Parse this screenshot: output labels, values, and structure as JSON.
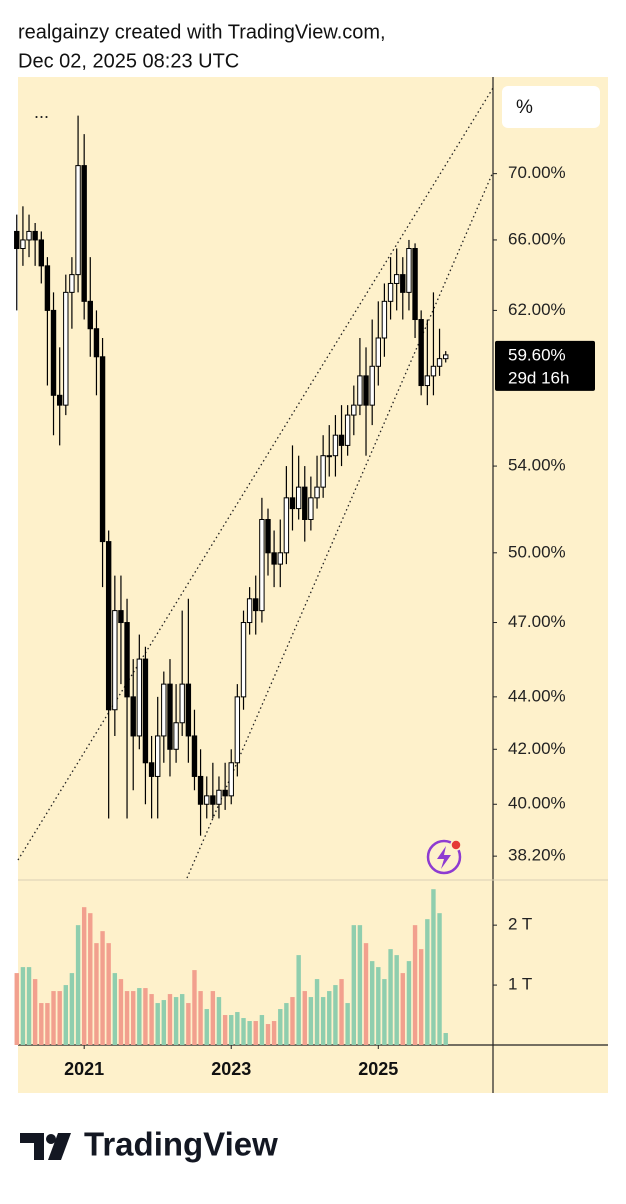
{
  "header": {
    "line1": "realgainzy created with TradingView.com,",
    "line2": "Dec 02, 2025 08:23 UTC"
  },
  "toolbar": {
    "menu": "...",
    "scale_button": "%"
  },
  "logo": "TradingView",
  "chart_data": {
    "type": "candlestick",
    "yscale": "log",
    "up_color": "#ffffff",
    "down_color": "#000000",
    "wick_color": "#000000",
    "volume_up_color": "#8fceae",
    "volume_down_color": "#f2a08e",
    "x": [
      2020.083,
      2020.167,
      2020.25,
      2020.333,
      2020.417,
      2020.5,
      2020.583,
      2020.667,
      2020.75,
      2020.833,
      2020.917,
      2021.0,
      2021.083,
      2021.167,
      2021.25,
      2021.333,
      2021.417,
      2021.5,
      2021.583,
      2021.667,
      2021.75,
      2021.833,
      2021.917,
      2022.0,
      2022.083,
      2022.167,
      2022.25,
      2022.333,
      2022.417,
      2022.5,
      2022.583,
      2022.667,
      2022.75,
      2022.833,
      2022.917,
      2023.0,
      2023.083,
      2023.167,
      2023.25,
      2023.333,
      2023.417,
      2023.5,
      2023.583,
      2023.667,
      2023.75,
      2023.833,
      2023.917,
      2024.0,
      2024.083,
      2024.167,
      2024.25,
      2024.333,
      2024.417,
      2024.5,
      2024.583,
      2024.667,
      2024.75,
      2024.833,
      2024.917,
      2025.0,
      2025.083,
      2025.167,
      2025.25,
      2025.333,
      2025.417,
      2025.5,
      2025.583,
      2025.667,
      2025.75,
      2025.833,
      2025.917
    ],
    "open": [
      66.5,
      65.5,
      66.0,
      66.5,
      66.0,
      64.5,
      62.0,
      57.5,
      57.0,
      63.0,
      64.0,
      70.5,
      62.5,
      61.0,
      59.5,
      50.5,
      43.5,
      47.5,
      47.0,
      44.0,
      42.5,
      45.5,
      41.5,
      41.0,
      42.5,
      44.5,
      42.0,
      43.0,
      44.5,
      42.5,
      41.0,
      40.0,
      40.3,
      40.0,
      40.5,
      40.3,
      41.5,
      44.0,
      47.0,
      48.0,
      47.5,
      51.5,
      50.0,
      49.5,
      50.0,
      52.5,
      52.0,
      53.0,
      51.5,
      52.5,
      53.0,
      54.5,
      54.5,
      55.5,
      55.0,
      56.5,
      57.0,
      58.5,
      57.0,
      59.0,
      60.5,
      62.5,
      63.5,
      64.0,
      63.0,
      65.5,
      61.5,
      58.0,
      58.5,
      59.0,
      59.4
    ],
    "high": [
      67.5,
      68.0,
      67.5,
      67.0,
      66.5,
      65.0,
      63.0,
      60.0,
      64.0,
      65.0,
      73.7,
      72.5,
      65.0,
      62.0,
      60.5,
      51.0,
      49.0,
      49.0,
      48.0,
      45.5,
      46.5,
      46.0,
      42.5,
      44.0,
      45.0,
      45.5,
      44.5,
      47.5,
      48.0,
      43.5,
      42.0,
      41.0,
      41.5,
      41.0,
      41.5,
      42.0,
      44.5,
      47.5,
      48.5,
      49.0,
      52.5,
      52.0,
      51.0,
      51.5,
      54.0,
      55.0,
      54.5,
      54.0,
      53.5,
      54.5,
      55.5,
      56.0,
      56.5,
      57.0,
      57.0,
      58.0,
      60.5,
      60.0,
      61.5,
      62.5,
      63.5,
      65.0,
      65.5,
      65.0,
      66.0,
      65.8,
      62.0,
      61.5,
      63.0,
      61.0,
      59.8
    ],
    "low": [
      62.0,
      64.5,
      65.0,
      64.5,
      63.5,
      58.0,
      55.5,
      55.0,
      56.5,
      61.0,
      63.0,
      61.5,
      59.5,
      57.5,
      48.5,
      39.5,
      42.5,
      44.5,
      39.5,
      40.5,
      42.0,
      40.0,
      39.5,
      39.5,
      41.5,
      41.0,
      41.5,
      42.5,
      41.5,
      40.5,
      38.9,
      39.5,
      39.5,
      39.5,
      39.8,
      40.0,
      41.0,
      43.5,
      46.5,
      46.5,
      47.0,
      49.0,
      48.5,
      48.5,
      49.5,
      51.0,
      51.5,
      50.5,
      51.0,
      52.0,
      52.5,
      53.5,
      53.5,
      54.0,
      54.5,
      55.5,
      56.5,
      54.5,
      56.0,
      58.0,
      59.5,
      61.5,
      62.0,
      61.5,
      62.0,
      60.5,
      57.5,
      57.0,
      57.5,
      58.5,
      59.2
    ],
    "close": [
      65.5,
      66.0,
      66.5,
      66.0,
      64.5,
      62.0,
      57.5,
      57.0,
      63.0,
      64.0,
      70.5,
      62.5,
      61.0,
      59.5,
      50.5,
      43.5,
      47.5,
      47.0,
      44.0,
      42.5,
      45.5,
      41.5,
      41.0,
      42.5,
      44.5,
      42.0,
      43.0,
      44.5,
      42.5,
      41.0,
      40.0,
      40.3,
      40.0,
      40.5,
      40.3,
      41.5,
      44.0,
      47.0,
      48.0,
      47.5,
      51.5,
      50.0,
      49.5,
      50.0,
      52.5,
      52.0,
      53.0,
      51.5,
      52.5,
      53.0,
      54.5,
      54.5,
      55.5,
      55.0,
      56.5,
      57.0,
      58.5,
      57.0,
      59.0,
      60.5,
      62.5,
      63.5,
      64.0,
      63.0,
      65.5,
      61.5,
      58.0,
      58.5,
      59.0,
      59.4,
      59.6
    ],
    "volume": [
      1.2,
      1.3,
      1.3,
      1.1,
      0.7,
      0.7,
      0.9,
      0.9,
      1.0,
      1.2,
      2.0,
      2.3,
      2.2,
      1.7,
      1.9,
      1.7,
      1.2,
      1.1,
      0.9,
      0.9,
      0.95,
      0.95,
      0.85,
      0.7,
      0.75,
      0.85,
      0.8,
      0.85,
      0.7,
      1.25,
      0.9,
      0.6,
      0.9,
      0.8,
      0.5,
      0.5,
      0.55,
      0.45,
      0.4,
      0.4,
      0.5,
      0.35,
      0.4,
      0.6,
      0.7,
      0.8,
      1.5,
      0.9,
      0.8,
      1.1,
      0.8,
      0.9,
      1.0,
      1.1,
      0.7,
      2.0,
      2.0,
      1.7,
      1.4,
      1.3,
      1.1,
      1.6,
      1.5,
      1.2,
      1.4,
      2.0,
      1.6,
      2.1,
      2.6,
      2.2,
      0.2
    ],
    "xlim": [
      2020.1,
      2026.56
    ],
    "xticks": [
      2021,
      2023,
      2025
    ],
    "ylim": [
      37.4,
      76.2
    ],
    "yticks": [
      {
        "value": 38.2,
        "label": "38.20%"
      },
      {
        "value": 40,
        "label": "40.00%"
      },
      {
        "value": 42,
        "label": "42.00%"
      },
      {
        "value": 44,
        "label": "44.00%"
      },
      {
        "value": 47,
        "label": "47.00%"
      },
      {
        "value": 50,
        "label": "50.00%"
      },
      {
        "value": 54,
        "label": "54.00%"
      },
      {
        "value": 62,
        "label": "62.00%"
      },
      {
        "value": 66,
        "label": "66.00%"
      },
      {
        "value": 70,
        "label": "70.00%"
      }
    ],
    "volume_ylim": [
      0,
      2.72
    ],
    "volume_ticks": [
      {
        "value": 1,
        "label": "1 T"
      },
      {
        "value": 2,
        "label": "2 T"
      }
    ],
    "last_price": {
      "value": 59.6,
      "label": "59.60%"
    },
    "countdown": "29d 16h"
  }
}
